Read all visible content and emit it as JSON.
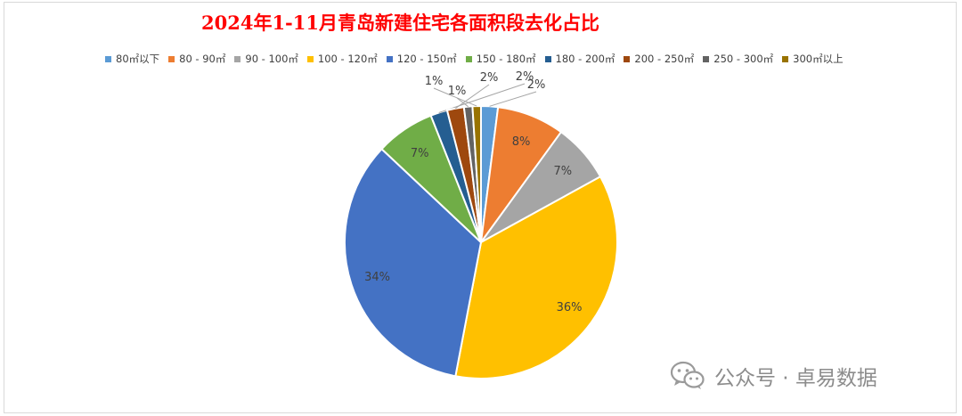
{
  "chart_data": {
    "type": "pie",
    "title": "2024年1-11月青岛新建住宅各面积段去化占比",
    "legend_position": "top",
    "slices": [
      {
        "label": "80㎡以下",
        "value": 2,
        "data_label": "2%",
        "color": "#5b9bd5"
      },
      {
        "label": "80 - 90㎡",
        "value": 8,
        "data_label": "8%",
        "color": "#ed7d31"
      },
      {
        "label": "90 - 100㎡",
        "value": 7,
        "data_label": "7%",
        "color": "#a5a5a5"
      },
      {
        "label": "100 - 120㎡",
        "value": 36,
        "data_label": "36%",
        "color": "#ffc000"
      },
      {
        "label": "120 - 150㎡",
        "value": 34,
        "data_label": "34%",
        "color": "#4472c4"
      },
      {
        "label": "150 - 180㎡",
        "value": 7,
        "data_label": "7%",
        "color": "#70ad47"
      },
      {
        "label": "180 - 200㎡",
        "value": 2,
        "data_label": "2%",
        "color": "#255e91"
      },
      {
        "label": "200 - 250㎡",
        "value": 2,
        "data_label": "2%",
        "color": "#9e480e"
      },
      {
        "label": "250 - 300㎡",
        "value": 1,
        "data_label": "1%",
        "color": "#636363"
      },
      {
        "label": "300㎡以上",
        "value": 1,
        "data_label": "1%",
        "color": "#997300"
      }
    ]
  },
  "watermark": {
    "text": "公众号 · 卓易数据",
    "icon": "wechat-icon"
  }
}
